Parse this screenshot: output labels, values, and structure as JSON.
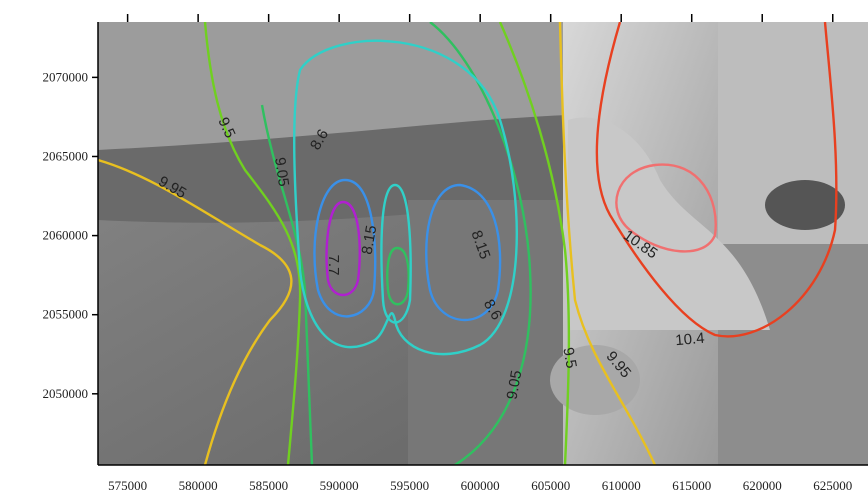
{
  "chart_data": {
    "type": "contour",
    "xlim": [
      572900,
      627500
    ],
    "ylim": [
      2045500,
      2073500
    ],
    "xticks": [
      575000,
      580000,
      585000,
      590000,
      595000,
      600000,
      605000,
      610000,
      615000,
      620000,
      625000
    ],
    "yticks": [
      2050000,
      2055000,
      2060000,
      2065000,
      2070000
    ],
    "contours": [
      {
        "level": 7.7,
        "color": "#b020d0"
      },
      {
        "level": 8.15,
        "color": "#3a90e8"
      },
      {
        "level": 8.6,
        "color": "#30d0c8"
      },
      {
        "level": 9.05,
        "color": "#30c060"
      },
      {
        "level": 9.5,
        "color": "#70d020"
      },
      {
        "level": 9.95,
        "color": "#e8c020"
      },
      {
        "level": 10.4,
        "color": "#e84020"
      },
      {
        "level": 10.85,
        "color": "#f07070"
      }
    ]
  }
}
